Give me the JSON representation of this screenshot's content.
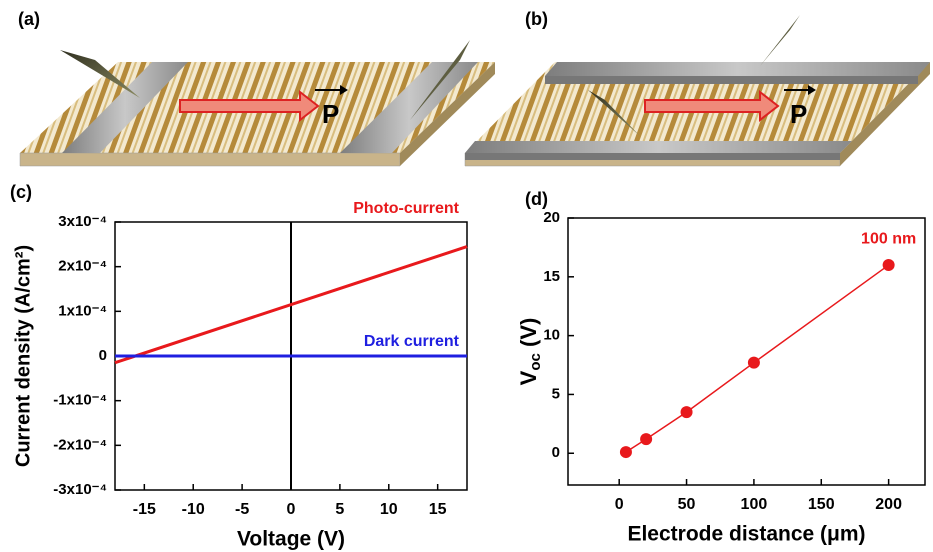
{
  "panels": {
    "a": "(a)",
    "b": "(b)",
    "c": "(c)",
    "d": "(d)"
  },
  "illustration": {
    "a_vector": "P",
    "b_vector": "P"
  },
  "chart_data": [
    {
      "type": "line",
      "x": [
        -18,
        18
      ],
      "series": [
        {
          "name": "Photo-current",
          "color": "#e8191c",
          "values": [
            -1.5e-05,
            0.000245
          ]
        },
        {
          "name": "Dark current",
          "color": "#1f1fe0",
          "values": [
            0,
            0
          ]
        }
      ],
      "xlabel": "Voltage (V)",
      "ylabel": "Current density (A/cm²)",
      "xlim": [
        -18,
        18
      ],
      "xticks": [
        -15,
        -10,
        -5,
        0,
        5,
        10,
        15
      ],
      "ylim": [
        -0.0003,
        0.0003
      ],
      "yticks": [
        {
          "value": 0.0003,
          "label": "3x10⁻⁴"
        },
        {
          "value": 0.0002,
          "label": "2x10⁻⁴"
        },
        {
          "value": 0.0001,
          "label": "1x10⁻⁴"
        },
        0,
        {
          "value": -0.0001,
          "label": "-1x10⁻⁴"
        },
        {
          "value": -0.0002,
          "label": "-2x10⁻⁴"
        },
        {
          "value": -0.0003,
          "label": "-3x10⁻⁴"
        }
      ]
    },
    {
      "type": "line-marker",
      "x": [
        5,
        20,
        50,
        100,
        200
      ],
      "series": [
        {
          "color": "#e8191c",
          "values": [
            0.1,
            1.2,
            3.5,
            7.7,
            16
          ]
        }
      ],
      "annotation": "100 nm",
      "xlabel": "Electrode distance (μm)",
      "ylabel": [
        "V",
        "oc",
        " (V)"
      ],
      "xlim": [
        -38,
        227
      ],
      "xticks": [
        0,
        50,
        100,
        150,
        200
      ],
      "ylim": [
        -2.7,
        20
      ],
      "yticks": [
        0,
        5,
        10,
        15,
        20
      ]
    }
  ]
}
